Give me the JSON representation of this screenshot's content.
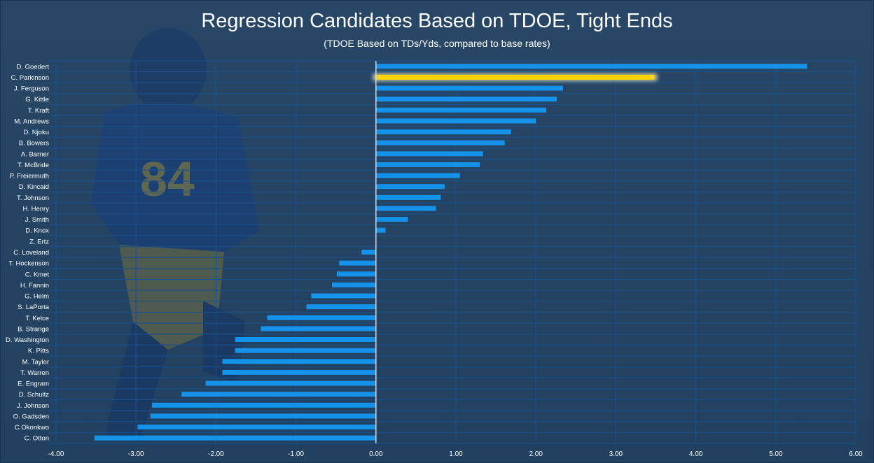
{
  "chart_data": {
    "type": "bar",
    "orientation": "horizontal",
    "title": "Regression Candidates Based on TDOE, Tight Ends",
    "subtitle": "(TDOE Based on TDs/Yds, compared to base rates)",
    "xlabel": "",
    "ylabel": "",
    "xlim": [
      -4,
      6
    ],
    "xticks": [
      "-4.00",
      "-3.00",
      "-2.00",
      "-1.00",
      "0.00",
      "1.00",
      "2.00",
      "3.00",
      "4.00",
      "5.00",
      "6.00"
    ],
    "grid": true,
    "highlight": "C. Parkinson",
    "colors": {
      "bar": "#1592ea",
      "highlight": "#ffd400",
      "grid": "#1a4f8a",
      "zero_line": "#c8d8ea"
    },
    "categories": [
      "D. Goedert",
      "C. Parkinson",
      "J. Ferguson",
      "G. Kittle",
      "T. Kraft",
      "M. Andrews",
      "D. Njoku",
      "B. Bowers",
      "A. Barner",
      "T. McBride",
      "P. Freiermuth",
      "D. Kincaid",
      "T. Johnson",
      "H. Henry",
      "J. Smith",
      "D. Knox",
      "Z. Ertz",
      "C. Loveland",
      "T. Hockenson",
      "C. Kmet",
      "H. Fannin",
      "G. Helm",
      "S. LaPorta",
      "T. Kelce",
      "B. Strange",
      "D. Washington",
      "K. Pitts",
      "M. Taylor",
      "T. Warren",
      "E. Engram",
      "D. Schultz",
      "J. Johnson",
      "O. Gadsden",
      "C.Okonkwo",
      "C. Otton"
    ],
    "values": [
      5.39,
      3.48,
      2.34,
      2.26,
      2.13,
      2.0,
      1.69,
      1.61,
      1.34,
      1.3,
      1.05,
      0.86,
      0.81,
      0.75,
      0.4,
      0.12,
      0.0,
      -0.18,
      -0.46,
      -0.49,
      -0.55,
      -0.81,
      -0.87,
      -1.36,
      -1.44,
      -1.76,
      -1.76,
      -1.92,
      -1.92,
      -2.13,
      -2.43,
      -2.8,
      -2.82,
      -2.98,
      -3.52
    ]
  }
}
